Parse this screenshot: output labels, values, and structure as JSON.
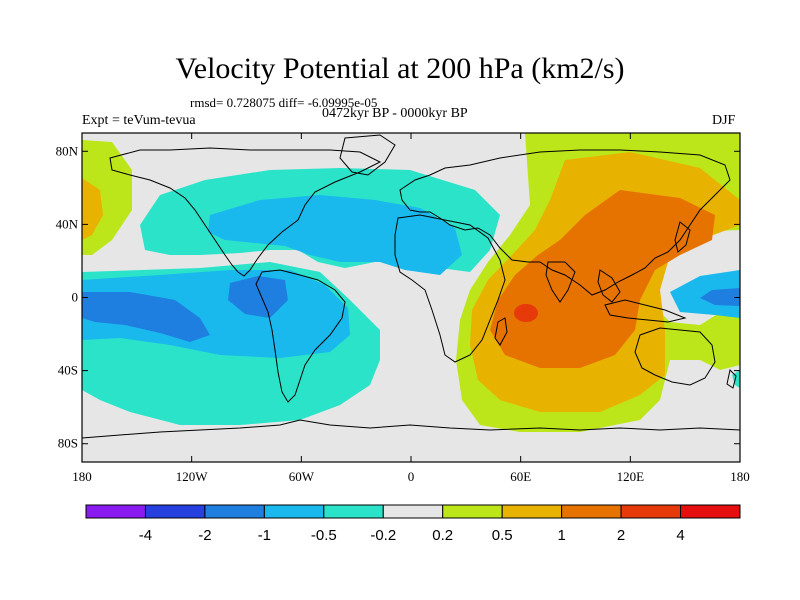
{
  "title": "Velocity Potential at 200 hPa (km2/s)",
  "stats": "rmsd= 0.728075 diff= -6.09995e-05",
  "period": "0472kyr BP - 0000kyr BP",
  "experiment": "Expt = teVum-tevua",
  "season": "DJF",
  "map": {
    "lon_range": [
      -180,
      180
    ],
    "lat_range": [
      -90,
      90
    ],
    "projection": "cylindrical equidistant"
  },
  "axes": {
    "lat_ticks": [
      {
        "value": 80,
        "label": "80N"
      },
      {
        "value": 40,
        "label": "40N"
      },
      {
        "value": 0,
        "label": "0"
      },
      {
        "value": -40,
        "label": "40S"
      },
      {
        "value": -80,
        "label": "80S"
      }
    ],
    "lon_ticks": [
      {
        "value": -180,
        "label": "180"
      },
      {
        "value": -120,
        "label": "120W"
      },
      {
        "value": -60,
        "label": "60W"
      },
      {
        "value": 0,
        "label": "0"
      },
      {
        "value": 60,
        "label": "60E"
      },
      {
        "value": 120,
        "label": "120E"
      },
      {
        "value": 180,
        "label": "180"
      }
    ]
  },
  "colorbar": {
    "colors": [
      "#8a1bf0",
      "#2640e0",
      "#1e7fe0",
      "#19b9ee",
      "#2ae3c9",
      "#e6e6e6",
      "#bde61a",
      "#e8b200",
      "#e67300",
      "#e63a0a",
      "#e60f0f"
    ],
    "labels": [
      "-4",
      "-2",
      "-1",
      "-0.5",
      "-0.2",
      "0.2",
      "0.5",
      "1",
      "2",
      "4"
    ]
  }
}
